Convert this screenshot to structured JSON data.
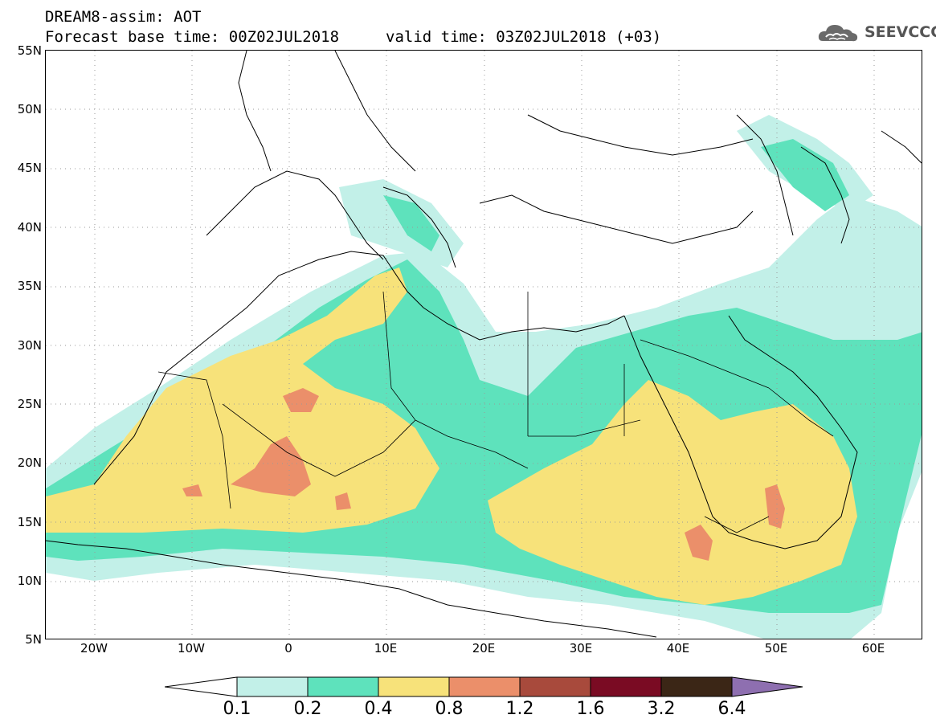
{
  "header": {
    "title": "DREAM8-assim: AOT",
    "base_time": "Forecast base time: 00Z02JUL2018",
    "valid_time": "valid time: 03Z02JUL2018 (+03)"
  },
  "logo": {
    "text": "SEEVCCC",
    "icon": "cloud-icon"
  },
  "map": {
    "lat_labels": [
      "55N",
      "50N",
      "45N",
      "40N",
      "35N",
      "30N",
      "25N",
      "20N",
      "15N",
      "10N",
      "5N"
    ],
    "lon_labels": [
      "20W",
      "10W",
      "0",
      "10E",
      "20E",
      "30E",
      "40E",
      "50E",
      "60E"
    ],
    "lon_range": [
      -25,
      65
    ],
    "lat_range": [
      5,
      55
    ]
  },
  "legend": {
    "levels": [
      "0.1",
      "0.2",
      "0.4",
      "0.8",
      "1.2",
      "1.6",
      "3.2",
      "6.4"
    ],
    "colors": [
      "#c2f0e8",
      "#5ee2bc",
      "#f7e27a",
      "#eb8f6a",
      "#a84a3c",
      "#7a0b23",
      "#3b2616",
      "#8e6fb0"
    ],
    "under_color": "#ffffff",
    "over_color": "#8e6fb0"
  }
}
